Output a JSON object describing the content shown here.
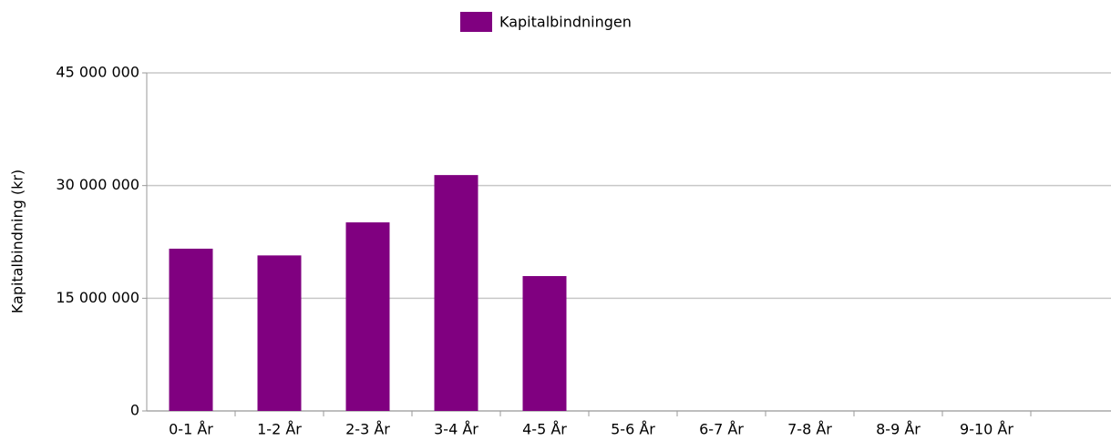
{
  "chart_data": {
    "type": "bar",
    "y_label": "Kapitalbindning (kr)",
    "categories": [
      "0-1 År",
      "1-2 År",
      "2-3 År",
      "3-4 År",
      "4-5 År",
      "5-6 År",
      "6-7 År",
      "7-8 År",
      "8-9 År",
      "9-10 År"
    ],
    "series": [
      {
        "name": "Kapitalbindningen",
        "color": "#800080",
        "values": [
          21600000,
          20700000,
          25100000,
          31400000,
          17950000,
          null,
          null,
          null,
          null,
          null
        ]
      }
    ],
    "ylim": [
      0,
      45000000
    ],
    "yticks": [
      0,
      {
        "value": 15000000,
        "label": "15 000 000"
      },
      {
        "value": 30000000,
        "label": "30 000 000"
      },
      {
        "value": 45000000,
        "label": "45 000 000"
      }
    ],
    "grid": true,
    "legend": "top"
  }
}
